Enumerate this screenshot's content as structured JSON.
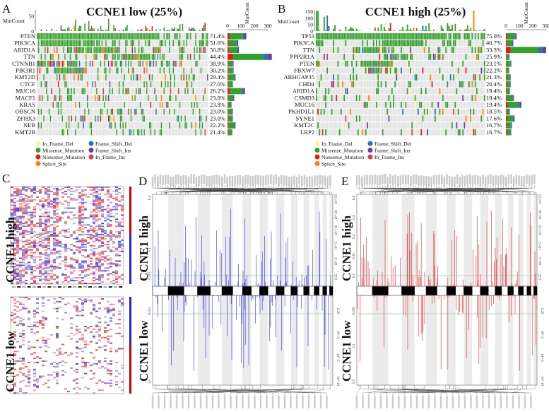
{
  "panels": {
    "a": "A",
    "b": "B",
    "c": "C",
    "d": "D",
    "e": "E"
  },
  "colors": {
    "In_Frame_Del": "#fbf59b",
    "Missense_Mutation": "#33a02c",
    "Nonsense_Mutation": "#e31a1c",
    "Splice_Site": "#ff7f00",
    "Frame_Shift_Del": "#1f78b4",
    "Frame_Shift_Ins": "#6a3d9a",
    "In_Frame_Ins": "#d53e4f",
    "empty": "#e3e3e3",
    "amp": "#e31a1c",
    "del": "#2222ee",
    "threshold": "#90d090",
    "arm_shade": "#ebebeb"
  },
  "chart_data": [
    {
      "type": "oncoplot",
      "title": "CCNE1 low (25%)",
      "top_axis_label": "MutCount",
      "top_ticks": [
        "0",
        "50"
      ],
      "side_axis_label": "MutCount",
      "side_ticks": [
        "0",
        "100",
        "200",
        "300"
      ],
      "genes": [
        "PTEN",
        "PIK3CA",
        "ARID1A",
        "TTN",
        "CTNNB1",
        "PIK3R1",
        "KMT2D",
        "CTCF",
        "MUC16",
        "MACF1",
        "KRAS",
        "OBSCN",
        "ZFHX3",
        "NEB",
        "KMT2B"
      ],
      "frequencies": [
        "71.4%",
        "51.6%",
        "50.8%",
        "44.4%",
        "38.9%",
        "30.2%",
        "29.4%",
        "27.0%",
        "26.2%",
        "23.8%",
        "23.8%",
        "23.0%",
        "23.0%",
        "22.2%",
        "21.4%"
      ],
      "mut_counts": [
        140,
        80,
        85,
        330,
        45,
        45,
        60,
        40,
        130,
        50,
        30,
        40,
        40,
        60,
        35
      ],
      "legend": [
        "In_Frame_Del",
        "Missense_Mutation",
        "Nonsense_Mutation",
        "Splice_Site",
        "Frame_Shift_Del",
        "Frame_Shift_Ins",
        "In_Frame_Ins"
      ]
    },
    {
      "type": "oncoplot",
      "title": "CCNE1 high (25%)",
      "top_axis_label": "MutCount",
      "top_ticks": [
        "0",
        "50",
        "100",
        "150"
      ],
      "side_axis_label": "MutCount",
      "side_ticks": [
        "0",
        "100",
        "200",
        "300"
      ],
      "genes": [
        "TP53",
        "PIK3CA",
        "TTN",
        "PPP2R1A",
        "PTEN",
        "FBXW7",
        "ARHGAP35",
        "CHD4",
        "ARID1A",
        "CSMD3",
        "MUC16",
        "PKHD1L1",
        "SYNE1",
        "KMT2C",
        "LRP2"
      ],
      "frequencies": [
        "75.0%",
        "40.7%",
        "33.3%",
        "25.9%",
        "23.1%",
        "22.2%",
        "21.3%",
        "20.4%",
        "19.4%",
        "19.4%",
        "19.4%",
        "18.5%",
        "17.6%",
        "16.7%",
        "16.7%"
      ],
      "mut_counts": [
        80,
        55,
        300,
        28,
        40,
        25,
        35,
        35,
        30,
        60,
        115,
        30,
        65,
        45,
        40
      ],
      "legend": [
        "In_Frame_Del",
        "Missense_Mutation",
        "Nonsense_Mutation",
        "Splice_Site",
        "Frame_Shift_Del",
        "Frame_Shift_Ins",
        "In_Frame_Ins"
      ]
    },
    {
      "type": "heatmap",
      "groups": [
        "CCNE1 high",
        "CCNE1 low"
      ]
    },
    {
      "type": "area",
      "groups": [
        "CCNE1 high",
        "CCNE1 low"
      ],
      "series_color": "#2222ee",
      "left_ticks_top": [
        "0.4",
        "0.2",
        "0.1",
        "0.052"
      ],
      "left_ticks_bottom": [
        "0.052",
        "1.0"
      ],
      "right_ticks_top": [
        "10^-50",
        "10^-20",
        "10^-10",
        "10^-5",
        "10^-3",
        "0.25"
      ],
      "right_ticks_bottom": [
        "0.25",
        "10^-3",
        "10^-5",
        "10^-10"
      ]
    },
    {
      "type": "area",
      "groups": [
        "CCNE1 high",
        "CCNE1 low"
      ],
      "series_color": "#e31a1c",
      "left_ticks_top": [
        "0.6",
        "0.4",
        "0.2",
        "0.15",
        "0.1"
      ],
      "left_ticks_bottom": [
        "0.059",
        "1.0",
        "5.0"
      ],
      "right_ticks_top": [
        "10^-50",
        "10^-20",
        "10^-10",
        "10^-5",
        "10^-3",
        "0.25"
      ],
      "right_ticks_bottom": [
        "0.25",
        "10^-3",
        "10^-5",
        "10^-10"
      ]
    }
  ]
}
